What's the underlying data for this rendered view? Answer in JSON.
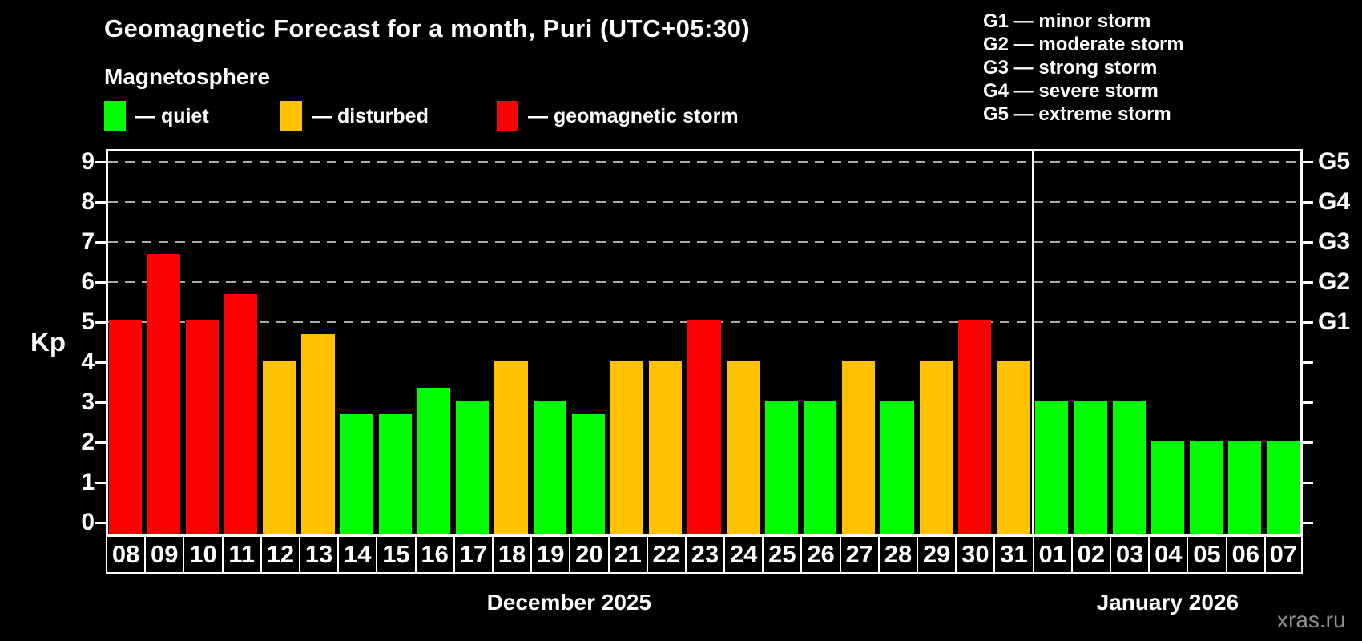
{
  "title": "Geomagnetic Forecast for a month, Puri (UTC+05:30)",
  "subtitle": "Magnetosphere",
  "watermark": "xras.ru",
  "colors": {
    "quiet": "#00ff00",
    "disturbed": "#ffc100",
    "storm": "#ff0000",
    "grid": "#aaaaaa",
    "axis": "#ffffff",
    "watermark": "#909090"
  },
  "legend": [
    {
      "level": "quiet",
      "label": "— quiet"
    },
    {
      "level": "disturbed",
      "label": "— disturbed"
    },
    {
      "level": "storm",
      "label": "— geomagnetic storm"
    }
  ],
  "g_legend": [
    "G1 — minor storm",
    "G2 — moderate storm",
    "G3 — strong storm",
    "G4 — severe storm",
    "G5 — extreme storm"
  ],
  "chart_data": {
    "type": "bar",
    "ylabel": "Kp",
    "y_ticks": [
      0,
      1,
      2,
      3,
      4,
      5,
      6,
      7,
      8,
      9
    ],
    "ylim": [
      0,
      9.3
    ],
    "grid": "dashed horizontal at Kp 5-9 only",
    "gridlines_at_kp": [
      5,
      6,
      7,
      8,
      9
    ],
    "right_axis": [
      {
        "label": "G1",
        "kp": 5
      },
      {
        "label": "G2",
        "kp": 6
      },
      {
        "label": "G3",
        "kp": 7
      },
      {
        "label": "G4",
        "kp": 8
      },
      {
        "label": "G5",
        "kp": 9
      }
    ],
    "legend_position": "top-left",
    "months": [
      {
        "label": "December 2025",
        "days": [
          {
            "date": "08",
            "kp": 5.0,
            "level": "storm"
          },
          {
            "date": "09",
            "kp": 6.67,
            "level": "storm"
          },
          {
            "date": "10",
            "kp": 5.0,
            "level": "storm"
          },
          {
            "date": "11",
            "kp": 5.67,
            "level": "storm"
          },
          {
            "date": "12",
            "kp": 4.0,
            "level": "disturbed"
          },
          {
            "date": "13",
            "kp": 4.67,
            "level": "disturbed"
          },
          {
            "date": "14",
            "kp": 2.67,
            "level": "quiet"
          },
          {
            "date": "15",
            "kp": 2.67,
            "level": "quiet"
          },
          {
            "date": "16",
            "kp": 3.33,
            "level": "quiet"
          },
          {
            "date": "17",
            "kp": 3.0,
            "level": "quiet"
          },
          {
            "date": "18",
            "kp": 4.0,
            "level": "disturbed"
          },
          {
            "date": "19",
            "kp": 3.0,
            "level": "quiet"
          },
          {
            "date": "20",
            "kp": 2.67,
            "level": "quiet"
          },
          {
            "date": "21",
            "kp": 4.0,
            "level": "disturbed"
          },
          {
            "date": "22",
            "kp": 4.0,
            "level": "disturbed"
          },
          {
            "date": "23",
            "kp": 5.0,
            "level": "storm"
          },
          {
            "date": "24",
            "kp": 4.0,
            "level": "disturbed"
          },
          {
            "date": "25",
            "kp": 3.0,
            "level": "quiet"
          },
          {
            "date": "26",
            "kp": 3.0,
            "level": "quiet"
          },
          {
            "date": "27",
            "kp": 4.0,
            "level": "disturbed"
          },
          {
            "date": "28",
            "kp": 3.0,
            "level": "quiet"
          },
          {
            "date": "29",
            "kp": 4.0,
            "level": "disturbed"
          },
          {
            "date": "30",
            "kp": 5.0,
            "level": "storm"
          },
          {
            "date": "31",
            "kp": 4.0,
            "level": "disturbed"
          }
        ]
      },
      {
        "label": "January 2026",
        "days": [
          {
            "date": "01",
            "kp": 3.0,
            "level": "quiet"
          },
          {
            "date": "02",
            "kp": 3.0,
            "level": "quiet"
          },
          {
            "date": "03",
            "kp": 3.0,
            "level": "quiet"
          },
          {
            "date": "04",
            "kp": 2.0,
            "level": "quiet"
          },
          {
            "date": "05",
            "kp": 2.0,
            "level": "quiet"
          },
          {
            "date": "06",
            "kp": 2.0,
            "level": "quiet"
          },
          {
            "date": "07",
            "kp": 2.0,
            "level": "quiet"
          }
        ]
      }
    ]
  }
}
